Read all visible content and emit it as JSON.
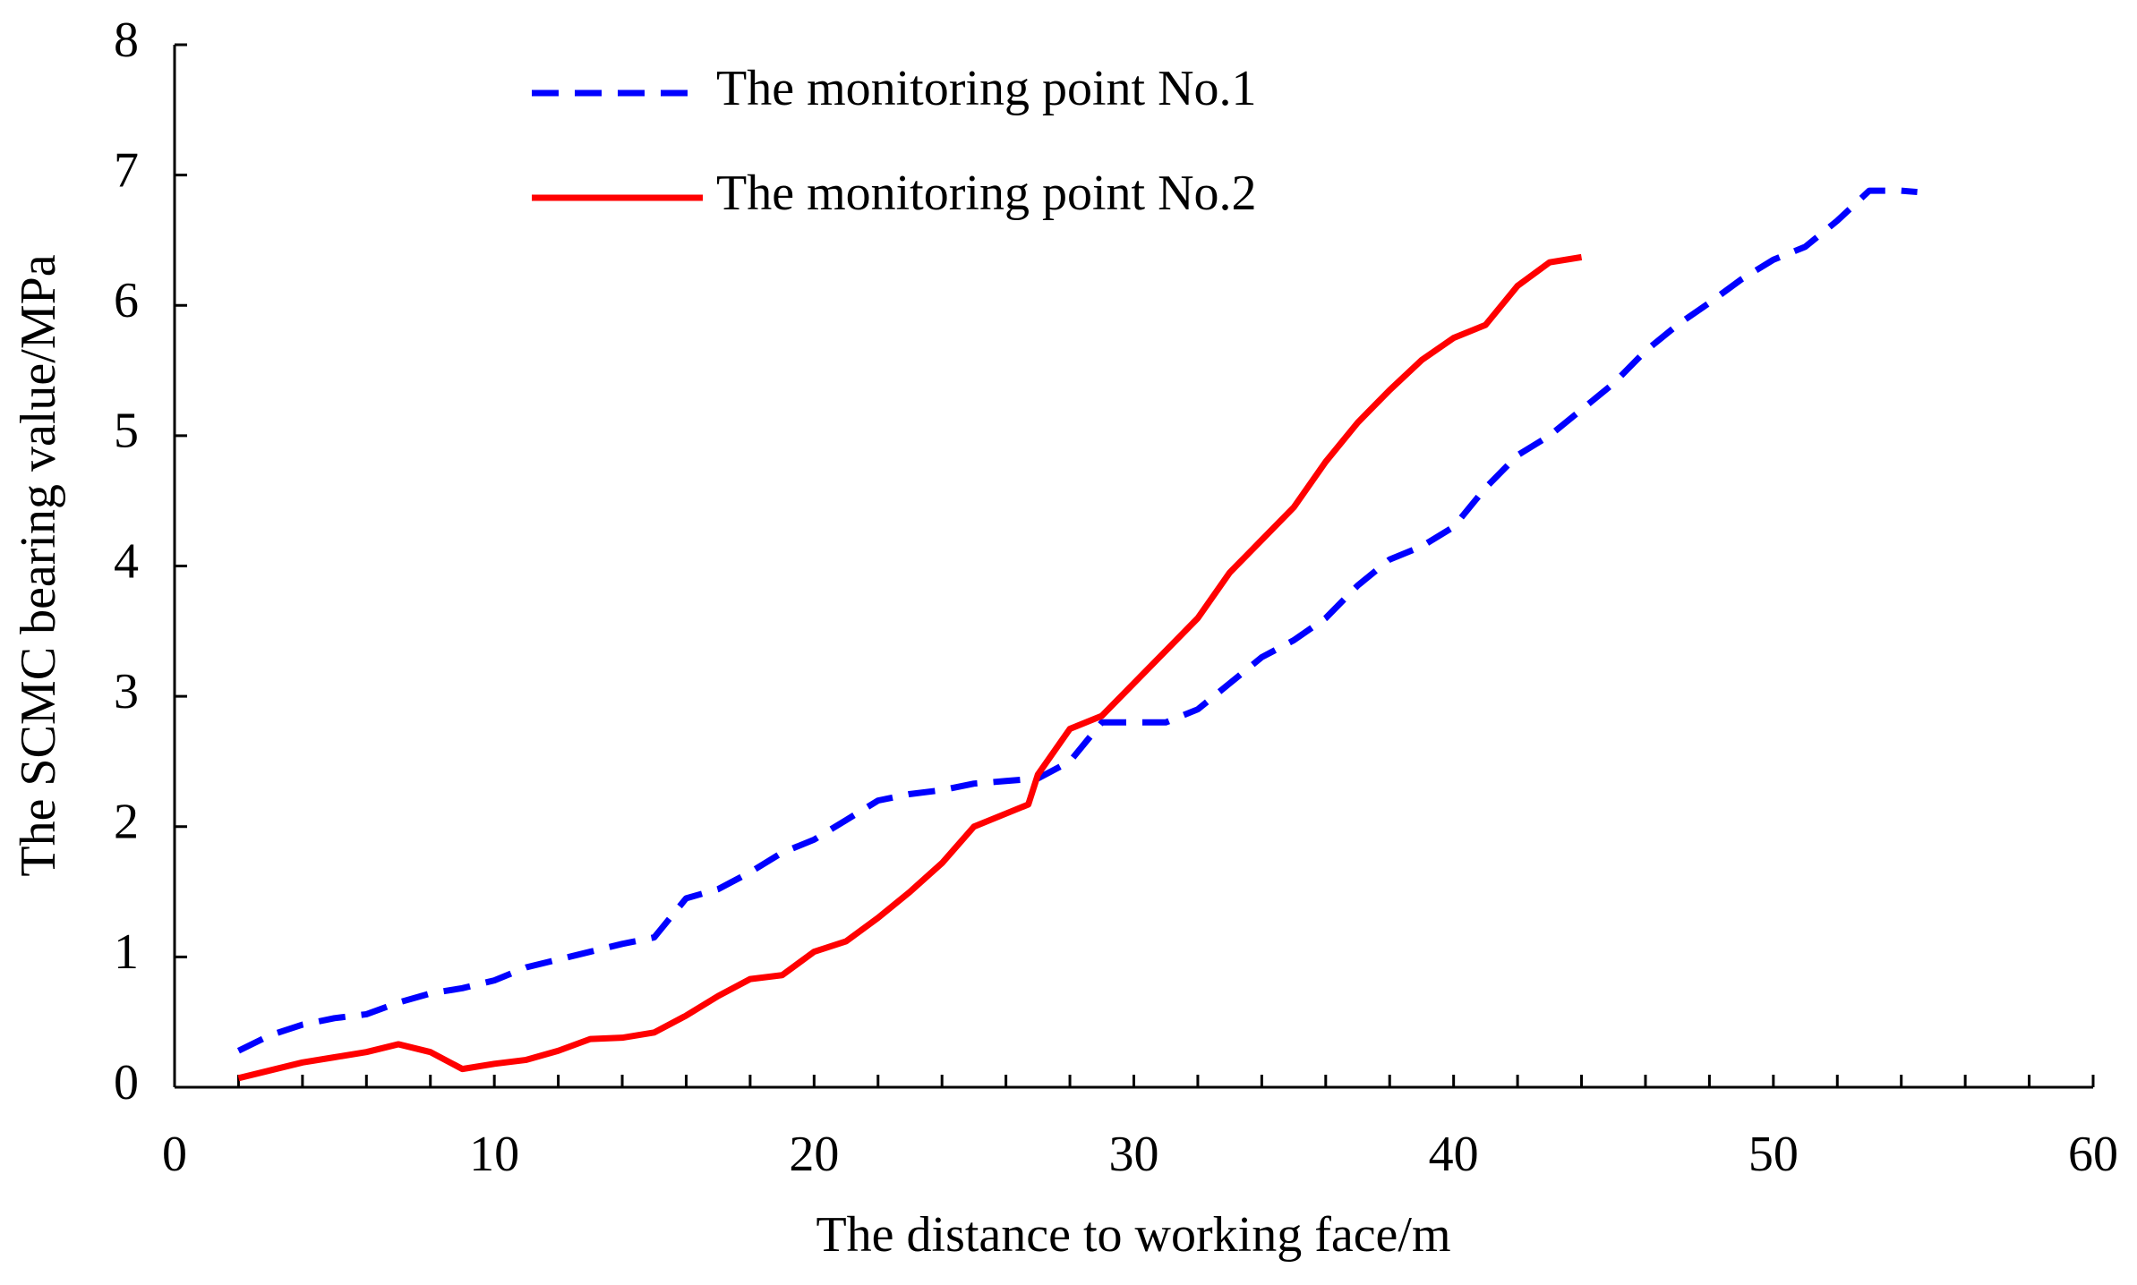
{
  "chart_data": {
    "type": "line",
    "xlabel": "The distance to working face/m",
    "ylabel": "The SCMC bearing value/MPa",
    "xlim": [
      0,
      60
    ],
    "xticks": [
      0,
      10,
      20,
      30,
      40,
      50,
      60
    ],
    "xminorticks": [
      2,
      4,
      6,
      8,
      12,
      14,
      16,
      18,
      22,
      24,
      26,
      28,
      32,
      34,
      36,
      38,
      42,
      44,
      46,
      48,
      52,
      54,
      56,
      58
    ],
    "ylim": [
      0,
      8
    ],
    "yticks": [
      0,
      1,
      2,
      3,
      4,
      5,
      6,
      7,
      8
    ],
    "legend": "top-left",
    "series": [
      {
        "name": "The monitoring point No.1",
        "color": "#0000ff",
        "dash": true,
        "x": [
          2,
          3,
          4,
          5,
          6,
          7,
          8,
          9,
          10,
          11,
          12,
          13,
          14,
          15,
          16,
          17,
          18,
          19,
          20,
          21,
          22,
          23,
          24,
          25,
          26,
          27,
          28,
          29,
          30,
          31,
          32,
          33,
          34,
          35,
          36,
          37,
          38,
          39,
          40,
          41,
          42,
          43,
          44,
          45,
          46,
          47,
          48,
          49,
          50,
          51,
          52,
          53,
          54,
          54.5
        ],
        "values": [
          0.28,
          0.4,
          0.48,
          0.53,
          0.56,
          0.65,
          0.72,
          0.76,
          0.82,
          0.92,
          0.98,
          1.04,
          1.1,
          1.15,
          1.45,
          1.52,
          1.65,
          1.8,
          1.9,
          2.05,
          2.2,
          2.25,
          2.28,
          2.33,
          2.35,
          2.37,
          2.5,
          2.8,
          2.8,
          2.8,
          2.9,
          3.1,
          3.3,
          3.43,
          3.6,
          3.85,
          4.05,
          4.15,
          4.3,
          4.6,
          4.85,
          5.0,
          5.2,
          5.4,
          5.65,
          5.85,
          6.02,
          6.2,
          6.35,
          6.45,
          6.65,
          6.88,
          6.88,
          6.87
        ]
      },
      {
        "name": "The monitoring point No.2",
        "color": "#ff0000",
        "dash": false,
        "x": [
          2,
          3,
          4,
          5,
          6,
          7,
          8,
          9,
          10,
          11,
          12,
          13,
          14,
          15,
          16,
          17,
          18,
          19,
          20,
          21,
          22,
          23,
          24,
          25,
          26,
          26.7,
          27,
          28,
          29,
          30,
          31,
          32,
          33,
          34,
          35,
          36,
          37,
          38,
          39,
          40,
          41,
          42,
          43,
          44
        ],
        "values": [
          0.07,
          0.13,
          0.19,
          0.23,
          0.27,
          0.33,
          0.27,
          0.14,
          0.18,
          0.21,
          0.28,
          0.37,
          0.38,
          0.42,
          0.55,
          0.7,
          0.83,
          0.86,
          1.04,
          1.12,
          1.3,
          1.5,
          1.72,
          2.0,
          2.1,
          2.17,
          2.4,
          2.75,
          2.85,
          3.1,
          3.35,
          3.6,
          3.95,
          4.2,
          4.45,
          4.8,
          5.1,
          5.35,
          5.58,
          5.75,
          5.85,
          6.15,
          6.33,
          6.37
        ]
      }
    ]
  }
}
